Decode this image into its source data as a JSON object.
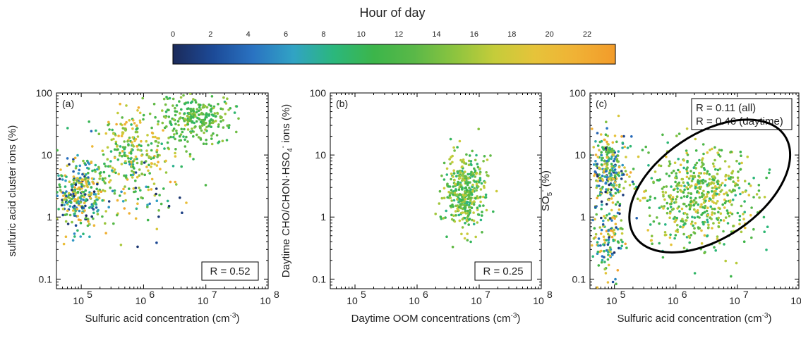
{
  "colorbar": {
    "title": "Hour of day",
    "ticks": [
      "0",
      "2",
      "4",
      "6",
      "8",
      "10",
      "12",
      "14",
      "16",
      "18",
      "20",
      "22"
    ],
    "range": [
      0,
      23.5
    ],
    "colormap": [
      "#1b2a5a",
      "#1c4a97",
      "#2a73c2",
      "#31a3c4",
      "#2bb77c",
      "#3cb54a",
      "#5ab848",
      "#8cc43f",
      "#c5cc3a",
      "#e6c33a",
      "#f0b235",
      "#f29b2a"
    ]
  },
  "panels": [
    {
      "label": "(a)",
      "xlabel": "Sulfuric acid concentration (cm",
      "xlabel_sup": "-3",
      "xlabel_tail": ")",
      "ylabel": "sulfuric acid cluster ions (%)",
      "r_text": "R = 0.52",
      "xticks": [
        "10",
        "10",
        "10",
        "10"
      ],
      "xtick_exps": [
        "5",
        "6",
        "7",
        "8"
      ],
      "yticks": [
        "0.1",
        "1",
        "10",
        "100"
      ]
    },
    {
      "label": "(b)",
      "xlabel": "Daytime OOM concentrations (cm",
      "xlabel_sup": "-3",
      "xlabel_tail": ")",
      "ylabel": "Daytime CHO/CHON·HSO",
      "ylabel_sub": "4",
      "ylabel_sup": "-",
      "ylabel_tail": " ions (%)",
      "r_text": "R = 0.25",
      "xticks": [
        "10",
        "10",
        "10",
        "10"
      ],
      "xtick_exps": [
        "5",
        "6",
        "7",
        "8"
      ],
      "yticks": [
        "0.1",
        "1",
        "10",
        "100"
      ]
    },
    {
      "label": "(c)",
      "xlabel": "Sulfuric acid concentration (cm",
      "xlabel_sup": "-3",
      "xlabel_tail": ")",
      "ylabel": "SO",
      "ylabel_sub": "5",
      "ylabel_sup": "-",
      "ylabel_tail": " (%)",
      "r_text_1": "R = 0.11 (all)",
      "r_text_2": "R = 0.46 (daytime)",
      "xticks": [
        "10",
        "10",
        "10",
        "10"
      ],
      "xtick_exps": [
        "5",
        "6",
        "7",
        "8"
      ],
      "yticks": [
        "0.1",
        "1",
        "10",
        "100"
      ]
    }
  ],
  "chart_data": [
    {
      "type": "scatter",
      "panel": "(a)",
      "xlabel": "Sulfuric acid concentration (cm-3)",
      "ylabel": "sulfuric acid cluster ions (%)",
      "x_scale": "log",
      "y_scale": "log",
      "xlim": [
        40000,
        100000000
      ],
      "ylim": [
        0.07,
        100
      ],
      "color_variable": "Hour of day",
      "annotation": "R = 0.52",
      "clusters": [
        {
          "x_center": 90000,
          "y_center": 2.3,
          "x_spread": 0.22,
          "y_spread": 0.28,
          "count": 320,
          "hours": [
            0,
            23
          ]
        },
        {
          "x_center": 600000,
          "y_center": 12,
          "x_spread": 0.35,
          "y_spread": 0.35,
          "count": 260,
          "hours": [
            8,
            22
          ]
        },
        {
          "x_center": 7000000,
          "y_center": 38,
          "x_spread": 0.3,
          "y_spread": 0.2,
          "count": 260,
          "hours": [
            9,
            16
          ]
        },
        {
          "x_center": 1000000,
          "y_center": 2.5,
          "x_spread": 0.4,
          "y_spread": 0.4,
          "count": 60,
          "hours": [
            0,
            23
          ]
        }
      ]
    },
    {
      "type": "scatter",
      "panel": "(b)",
      "xlabel": "Daytime OOM concentrations (cm-3)",
      "ylabel": "Daytime CHO/CHON·HSO4- ions (%)",
      "x_scale": "log",
      "y_scale": "log",
      "xlim": [
        40000,
        100000000
      ],
      "ylim": [
        0.07,
        100
      ],
      "color_variable": "Hour of day",
      "annotation": "R = 0.25",
      "clusters": [
        {
          "x_center": 6000000,
          "y_center": 2.5,
          "x_spread": 0.16,
          "y_spread": 0.3,
          "count": 380,
          "hours": [
            8,
            18
          ]
        }
      ]
    },
    {
      "type": "scatter",
      "panel": "(c)",
      "xlabel": "Sulfuric acid concentration (cm-3)",
      "ylabel": "SO5- (%)",
      "x_scale": "log",
      "y_scale": "log",
      "xlim": [
        40000,
        100000000
      ],
      "ylim": [
        0.07,
        100
      ],
      "color_variable": "Hour of day",
      "annotations": [
        "R = 0.11 (all)",
        "R = 0.46 (daytime)"
      ],
      "clusters": [
        {
          "x_center": 85000,
          "y_center": 6,
          "x_spread": 0.14,
          "y_spread": 0.3,
          "count": 260,
          "hours": [
            0,
            23
          ]
        },
        {
          "x_center": 80000,
          "y_center": 0.5,
          "x_spread": 0.12,
          "y_spread": 0.35,
          "count": 140,
          "hours": [
            0,
            23
          ]
        },
        {
          "x_center": 2500000,
          "y_center": 2.2,
          "x_spread": 0.45,
          "y_spread": 0.42,
          "count": 560,
          "hours": [
            8,
            20
          ]
        }
      ],
      "ellipse": {
        "x_center_log": 6.55,
        "y_center_log": 0.5,
        "description": "daytime data outline"
      }
    }
  ]
}
